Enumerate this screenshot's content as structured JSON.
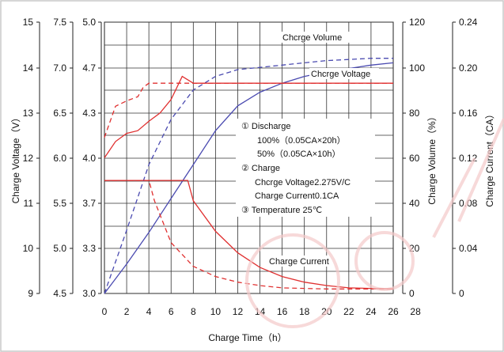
{
  "chart_data": {
    "type": "line",
    "xlabel": "Charge Time（h）",
    "x_ticks": [
      0,
      2,
      4,
      6,
      8,
      10,
      12,
      14,
      16,
      18,
      20,
      22,
      24,
      26,
      28
    ],
    "xlim": [
      0,
      26
    ],
    "left_axes": [
      {
        "name": "charge-voltage-axis-1",
        "label": "Charge Voltage（V）",
        "ticks": [
          "15",
          "14",
          "13",
          "12",
          "11",
          "10",
          "9"
        ],
        "range": [
          9,
          15
        ]
      },
      {
        "name": "charge-voltage-axis-2",
        "ticks": [
          "7.5",
          "7.0",
          "6.5",
          "6.0",
          "5.5",
          "5.0",
          "4.5"
        ],
        "range": [
          4.5,
          7.5
        ]
      },
      {
        "name": "charge-voltage-axis-3",
        "ticks": [
          "5.0",
          "4.7",
          "4.3",
          "4.0",
          "3.7",
          "3.3",
          "3.0"
        ],
        "range": [
          3.0,
          5.0
        ]
      }
    ],
    "right_axes": [
      {
        "name": "charge-volume-axis",
        "label": "Charge Volume（%）",
        "ticks": [
          "120",
          "100",
          "80",
          "60",
          "40",
          "20",
          "0"
        ],
        "range": [
          0,
          120
        ]
      },
      {
        "name": "charge-current-axis",
        "label": "Charge Current（CA）",
        "ticks": [
          "0.24",
          "0.20",
          "0.16",
          "0.12",
          "0.08",
          "0.04",
          "0"
        ],
        "range": [
          0,
          0.24
        ]
      }
    ],
    "annotations": {
      "volume_label": "Chcrge Volume",
      "voltage_label": "Chcrge Voltage",
      "current_label": "Charge Current",
      "legend_lines": [
        "① Discharge",
        "100%（0.05CA×20h）",
        "50%（0.05CA×10h）",
        "② Charge",
        "Chcrge Voltage2.275V/C",
        "Charge Current0.1CA",
        "③ Temperature 25℃"
      ]
    },
    "series": [
      {
        "group": "charge-volume",
        "style": "solid",
        "color": "#4a4ab0",
        "x": [
          0,
          2,
          4,
          6,
          8,
          10,
          12,
          14,
          16,
          18,
          20,
          22,
          24,
          26
        ],
        "y": [
          0,
          13,
          27,
          42,
          57,
          72,
          83,
          89,
          93,
          96,
          98,
          99.5,
          101,
          102
        ]
      },
      {
        "group": "charge-volume",
        "style": "dashed",
        "color": "#4a4ab0",
        "x": [
          0,
          2,
          4,
          6,
          8,
          10,
          12,
          14,
          16,
          18,
          20,
          22,
          24,
          26
        ],
        "y": [
          0,
          28,
          57,
          77,
          90,
          96,
          99,
          100,
          101,
          102,
          103,
          103.5,
          104,
          104
        ]
      },
      {
        "group": "charge-voltage",
        "style": "solid",
        "color": "#e03030",
        "x": [
          0,
          1,
          2,
          3,
          4,
          5,
          6,
          7,
          8,
          26
        ],
        "y": [
          4.0,
          4.12,
          4.18,
          4.2,
          4.27,
          4.33,
          4.43,
          4.6,
          4.55,
          4.55
        ]
      },
      {
        "group": "charge-voltage",
        "style": "dashed",
        "color": "#e03030",
        "x": [
          0,
          1,
          2,
          3,
          3.5,
          4,
          26
        ],
        "y": [
          4.15,
          4.38,
          4.42,
          4.45,
          4.52,
          4.55,
          4.55
        ]
      },
      {
        "group": "charge-current",
        "style": "solid",
        "color": "#e03030",
        "x": [
          0,
          7.5,
          8,
          10,
          12,
          14,
          16,
          18,
          20,
          22,
          24,
          26
        ],
        "y": [
          0.1,
          0.1,
          0.082,
          0.055,
          0.036,
          0.023,
          0.015,
          0.01,
          0.007,
          0.005,
          0.0045,
          0.004
        ]
      },
      {
        "group": "charge-current",
        "style": "dashed",
        "color": "#e03030",
        "x": [
          0,
          4,
          4.5,
          6,
          8,
          10,
          12,
          14,
          16,
          18,
          20,
          22,
          24,
          26
        ],
        "y": [
          0.1,
          0.1,
          0.082,
          0.045,
          0.024,
          0.015,
          0.01,
          0.007,
          0.005,
          0.0045,
          0.004,
          0.004,
          0.004,
          0.004
        ]
      }
    ]
  }
}
